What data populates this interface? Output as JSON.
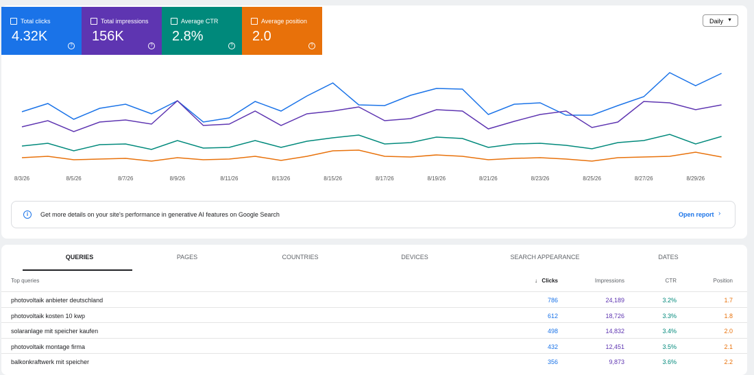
{
  "chart_data": {
    "type": "line",
    "categories": [
      "8/3/26",
      null,
      "8/5/26",
      null,
      "8/7/26",
      null,
      "8/9/26",
      null,
      "8/11/26",
      null,
      "8/13/26",
      null,
      "8/15/26",
      null,
      "8/17/26",
      null,
      "8/19/26",
      null,
      "8/21/26",
      null,
      "8/23/26",
      null,
      "8/25/26",
      null,
      "8/27/26",
      null,
      "8/29/26",
      null
    ],
    "ylim": [
      0,
      160
    ],
    "series": [
      {
        "name": "Total clicks",
        "total": "4.32K",
        "color": "#1a73e8",
        "values": [
          87,
          99,
          76,
          92,
          98,
          84,
          103,
          72,
          78,
          102,
          88,
          110,
          129,
          97,
          96,
          111,
          121,
          120,
          83,
          98,
          100,
          82,
          82,
          96,
          109,
          144,
          125,
          143
        ]
      },
      {
        "name": "Total impressions",
        "total": "156K",
        "color": "#5e35b1",
        "values": [
          65,
          74,
          58,
          72,
          75,
          69,
          103,
          67,
          69,
          88,
          67,
          84,
          88,
          94,
          74,
          77,
          90,
          88,
          62,
          73,
          83,
          88,
          64,
          72,
          102,
          100,
          90,
          97
        ]
      },
      {
        "name": "Average CTR",
        "total": "2.8%",
        "color": "#00897b",
        "values": [
          37,
          41,
          30,
          39,
          40,
          32,
          45,
          34,
          35,
          45,
          35,
          44,
          49,
          53,
          40,
          42,
          50,
          48,
          35,
          40,
          41,
          38,
          33,
          42,
          45,
          54,
          40,
          51
        ]
      },
      {
        "name": "Average position",
        "total": "2.0",
        "color": "#e8710a",
        "values": [
          20,
          22,
          17,
          18,
          19,
          15,
          20,
          17,
          18,
          22,
          16,
          22,
          30,
          31,
          22,
          21,
          24,
          22,
          17,
          19,
          20,
          18,
          15,
          20,
          21,
          22,
          28,
          21
        ]
      }
    ]
  },
  "controls": {
    "period": "Daily"
  },
  "banner": {
    "text": "Get more details on your site's performance in generative AI features on Google Search",
    "link": "Open report"
  },
  "tabs": [
    "QUERIES",
    "PAGES",
    "COUNTRIES",
    "DEVICES",
    "SEARCH APPEARANCE",
    "DATES"
  ],
  "table": {
    "columns": [
      "Top queries",
      "Clicks",
      "Impressions",
      "CTR",
      "Position"
    ],
    "rows": [
      [
        "photovoltaik anbieter deutschland",
        "786",
        "24,189",
        "3.2%",
        "1.7"
      ],
      [
        "photovoltaik kosten 10 kwp",
        "612",
        "18,726",
        "3.3%",
        "1.8"
      ],
      [
        "solaranlage mit speicher kaufen",
        "498",
        "14,832",
        "3.4%",
        "2.0"
      ],
      [
        "photovoltaik montage firma",
        "432",
        "12,451",
        "3.5%",
        "2.1"
      ],
      [
        "balkonkraftwerk mit speicher",
        "356",
        "9,873",
        "3.6%",
        "2.2"
      ]
    ]
  }
}
